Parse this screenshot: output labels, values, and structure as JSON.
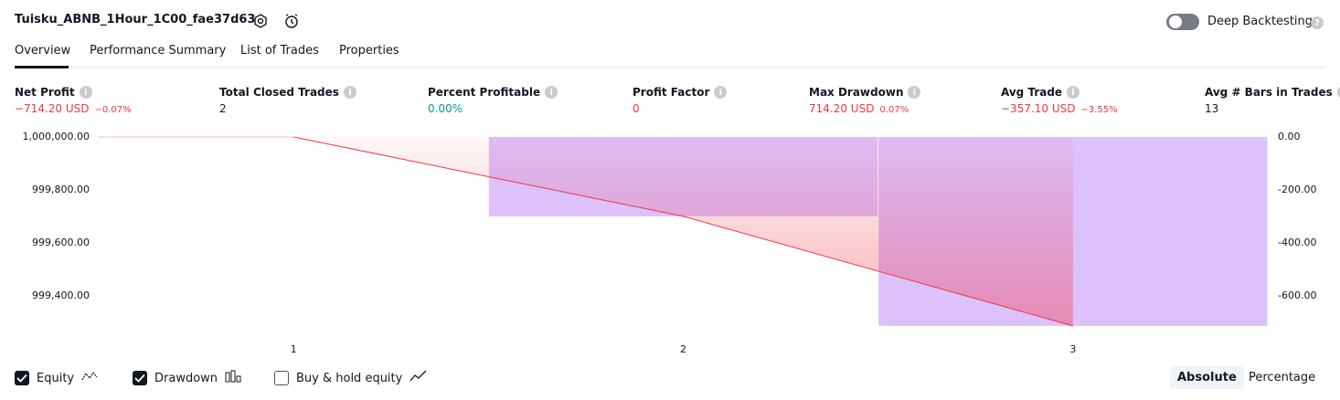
{
  "header": {
    "strategy_name": "Tuisku_ABNB_1Hour_1C00_fae37d63",
    "deep_backtesting": "Deep Backtesting"
  },
  "tabs": [
    "Overview",
    "Performance Summary",
    "List of Trades",
    "Properties"
  ],
  "metrics": [
    {
      "label": "Net Profit",
      "value": "−714.20 USD",
      "percent": "−0.07%",
      "color": "#f23645"
    },
    {
      "label": "Total Closed Trades",
      "value": "2",
      "color": "#131722"
    },
    {
      "label": "Percent Profitable",
      "value": "0.00%",
      "color": "#089981"
    },
    {
      "label": "Profit Factor",
      "value": "0",
      "color": "#f23645"
    },
    {
      "label": "Max Drawdown",
      "value": "714.20 USD",
      "percent": "0.07%",
      "color": "#f23645"
    },
    {
      "label": "Avg Trade",
      "value": "−357.10 USD",
      "percent": "−3.55%",
      "color": "#f23645"
    },
    {
      "label": "Avg # Bars in Trades",
      "value": "13",
      "color": "#131722"
    }
  ],
  "chart_data": {
    "type": "combo",
    "categories": [
      "1",
      "2",
      "3"
    ],
    "series": [
      {
        "name": "Equity",
        "type": "line",
        "color": "#f23645",
        "checked": true,
        "values": [
          1000000,
          999700,
          999285.8
        ]
      },
      {
        "name": "Drawdown",
        "type": "bar",
        "axis": "y2",
        "color": "#dcc1fb",
        "checked": true,
        "values": [
          0,
          -300,
          -714.2
        ]
      },
      {
        "name": "Buy & hold equity",
        "type": "line",
        "color": "#2962ff",
        "checked": false,
        "values": [
          null,
          null,
          null
        ]
      }
    ],
    "ylim": [
      999275,
      1000000
    ],
    "yticks": [
      {
        "value": 1000000,
        "label": "1,000,000.00"
      },
      {
        "value": 999800,
        "label": "999,800.00"
      },
      {
        "value": 999600,
        "label": "999,600.00"
      },
      {
        "value": 999400,
        "label": "999,400.00"
      }
    ],
    "y2lim": [
      -725,
      0
    ],
    "y2ticks": [
      {
        "value": 0,
        "label": "0.00"
      },
      {
        "value": -200,
        "label": "-200.00"
      },
      {
        "value": -400,
        "label": "-400.00"
      },
      {
        "value": -600,
        "label": "-600.00"
      }
    ]
  },
  "scale_modes": [
    {
      "label": "Absolute",
      "active": true
    },
    {
      "label": "Percentage",
      "active": false
    }
  ]
}
